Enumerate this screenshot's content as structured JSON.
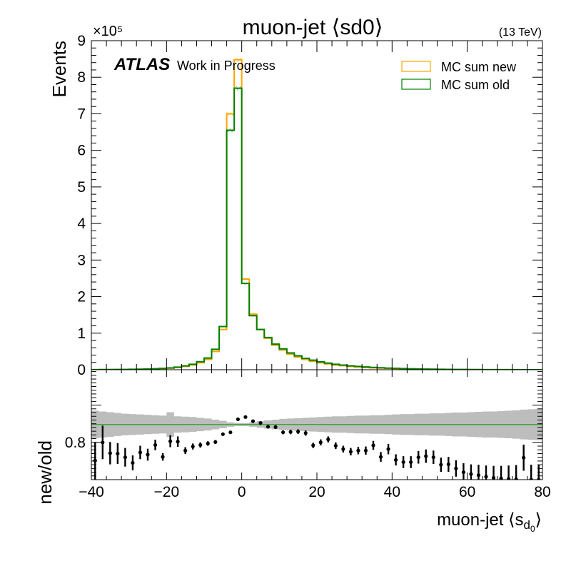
{
  "chart_data": [
    {
      "panel": "main",
      "type": "line",
      "title": "muon-jet ⟨sd0⟩",
      "energy_label": "(13 TeV)",
      "ylabel": "Events",
      "y_multiplier": "×10⁵",
      "xlim": [
        -40,
        80
      ],
      "ylim": [
        0,
        900000
      ],
      "y_ticks": [
        "0",
        "1",
        "2",
        "3",
        "4",
        "5",
        "6",
        "7",
        "8",
        "9"
      ],
      "experiment": "ATLAS",
      "experiment_status": "Work in Progress",
      "legend_position": "top-right",
      "bin_edges": [
        -40,
        -38,
        -36,
        -34,
        -32,
        -30,
        -28,
        -26,
        -24,
        -22,
        -20,
        -18,
        -16,
        -14,
        -12,
        -10,
        -8,
        -6,
        -4,
        -2,
        0,
        2,
        4,
        6,
        8,
        10,
        12,
        14,
        16,
        18,
        20,
        22,
        24,
        26,
        28,
        30,
        32,
        34,
        36,
        38,
        40,
        42,
        44,
        46,
        48,
        50,
        52,
        54,
        56,
        58,
        60,
        62,
        64,
        66,
        68,
        70,
        72,
        74,
        76,
        78,
        80
      ],
      "series": [
        {
          "name": "MC sum new",
          "color": "#FFA500",
          "values": [
            200,
            300,
            400,
            500,
            700,
            900,
            1200,
            1600,
            2200,
            3000,
            4200,
            6000,
            9000,
            13000,
            19000,
            28000,
            50000,
            110000,
            700000,
            848000,
            248000,
            152000,
            110000,
            86000,
            67000,
            54000,
            43000,
            35000,
            28000,
            23000,
            19000,
            16000,
            13000,
            11000,
            9000,
            7500,
            6200,
            5200,
            4300,
            3600,
            3000,
            2500,
            2000,
            1700,
            1400,
            1100,
            900,
            750,
            600,
            500,
            400,
            320,
            260,
            210,
            170,
            130,
            100,
            80,
            60,
            50
          ]
        },
        {
          "name": "MC sum old",
          "color": "#008000",
          "values": [
            250,
            370,
            480,
            620,
            850,
            1100,
            1450,
            1950,
            2650,
            3600,
            5000,
            7100,
            10500,
            15000,
            22000,
            32000,
            56000,
            118000,
            655000,
            770000,
            236000,
            148000,
            110000,
            88000,
            70000,
            57000,
            46000,
            38000,
            31000,
            26000,
            21500,
            18000,
            15000,
            12800,
            10600,
            9000,
            7500,
            6300,
            5300,
            4500,
            3800,
            3200,
            2600,
            2200,
            1800,
            1500,
            1200,
            1000,
            820,
            670,
            540,
            440,
            360,
            290,
            230,
            180,
            140,
            110,
            85,
            70
          ]
        }
      ]
    },
    {
      "panel": "ratio",
      "type": "scatter",
      "ylabel": "new/old",
      "xlabel": "muon-jet ⟨s",
      "xlabel_subscript": "d",
      "xlabel_subsubscript": "0",
      "xlabel_suffix": "⟩",
      "xlim": [
        -40,
        80
      ],
      "ylim": [
        0.7,
        0.995
      ],
      "y_ticks": [
        "0.8"
      ],
      "x_ticks": [
        "−40",
        "−20",
        "0",
        "20",
        "40",
        "60",
        "80"
      ],
      "reference_line": 0.848,
      "band_color": "#BDBDBD",
      "x": [
        -39,
        -37,
        -35,
        -33,
        -31,
        -29,
        -27,
        -25,
        -23,
        -21,
        -19,
        -17,
        -15,
        -13,
        -11,
        -9,
        -7,
        -5,
        -3,
        -1,
        1,
        3,
        5,
        7,
        9,
        11,
        13,
        15,
        17,
        19,
        21,
        23,
        25,
        27,
        29,
        31,
        33,
        35,
        37,
        39,
        41,
        43,
        45,
        47,
        49,
        51,
        53,
        55,
        57,
        59,
        61,
        63,
        65,
        67,
        69,
        71,
        73,
        75,
        77,
        79
      ],
      "y": [
        0.751,
        0.8,
        0.771,
        0.77,
        0.76,
        0.745,
        0.773,
        0.767,
        0.793,
        0.761,
        0.803,
        0.802,
        0.778,
        0.789,
        0.793,
        0.797,
        0.801,
        0.822,
        0.827,
        0.862,
        0.868,
        0.857,
        0.852,
        0.842,
        0.841,
        0.827,
        0.828,
        0.829,
        0.825,
        0.792,
        0.8,
        0.808,
        0.791,
        0.782,
        0.775,
        0.778,
        0.778,
        0.792,
        0.761,
        0.782,
        0.753,
        0.747,
        0.747,
        0.76,
        0.763,
        0.76,
        0.74,
        0.741,
        0.73,
        0.72,
        0.715,
        0.712,
        0.708,
        0.705,
        0.703,
        0.702,
        0.701,
        0.759,
        0.7,
        0.7
      ],
      "err": [
        0.05,
        0.045,
        0.03,
        0.028,
        0.025,
        0.02,
        0.018,
        0.016,
        0.014,
        0.01,
        0.016,
        0.014,
        0.009,
        0.008,
        0.007,
        0.006,
        0.005,
        0.004,
        0.003,
        0.002,
        0.002,
        0.003,
        0.004,
        0.004,
        0.005,
        0.005,
        0.006,
        0.006,
        0.007,
        0.007,
        0.008,
        0.008,
        0.009,
        0.009,
        0.01,
        0.01,
        0.011,
        0.012,
        0.013,
        0.014,
        0.015,
        0.016,
        0.016,
        0.017,
        0.018,
        0.018,
        0.019,
        0.02,
        0.022,
        0.024,
        0.026,
        0.028,
        0.03,
        0.032,
        0.034,
        0.036,
        0.038,
        0.035,
        0.04,
        0.04
      ],
      "band_half_width": [
        0.037,
        0.035,
        0.033,
        0.031,
        0.029,
        0.028,
        0.027,
        0.026,
        0.025,
        0.024,
        0.033,
        0.022,
        0.021,
        0.02,
        0.018,
        0.016,
        0.013,
        0.01,
        0.006,
        0.004,
        0.004,
        0.006,
        0.009,
        0.011,
        0.013,
        0.015,
        0.016,
        0.017,
        0.018,
        0.019,
        0.02,
        0.021,
        0.022,
        0.022,
        0.023,
        0.024,
        0.024,
        0.025,
        0.025,
        0.026,
        0.027,
        0.028,
        0.028,
        0.029,
        0.029,
        0.03,
        0.03,
        0.031,
        0.032,
        0.032,
        0.033,
        0.034,
        0.035,
        0.035,
        0.036,
        0.037,
        0.038,
        0.04,
        0.041,
        0.042
      ]
    }
  ]
}
